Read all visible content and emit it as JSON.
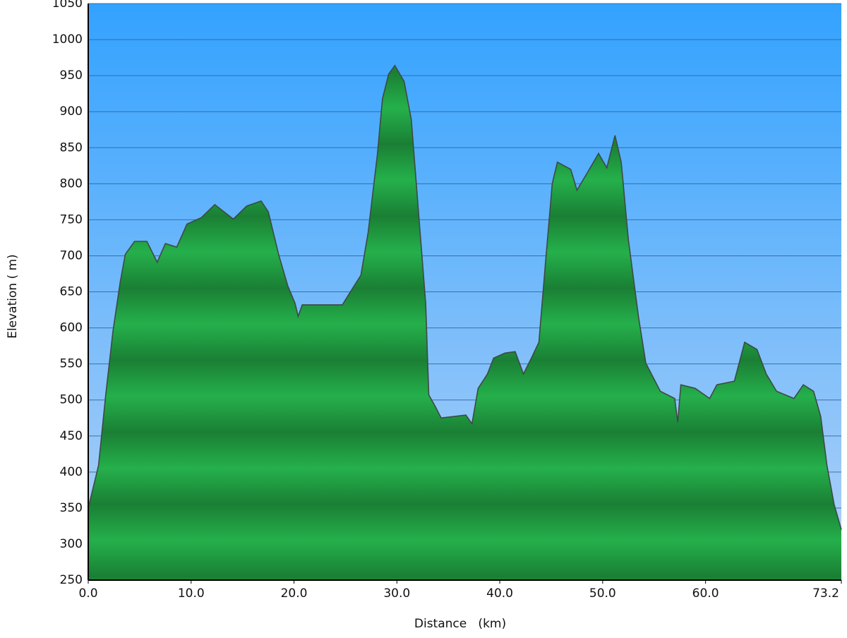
{
  "chart_data": {
    "type": "area",
    "xlabel": "Distance   (km)",
    "ylabel": "Elevation ( m)",
    "x": [
      0,
      1.0,
      1.7,
      2.4,
      3.1,
      3.6,
      4.5,
      5.7,
      6.7,
      7.5,
      8.6,
      9.6,
      11.0,
      12.3,
      14.1,
      15.4,
      16.8,
      17.5,
      18.5,
      19.4,
      20.1,
      20.4,
      20.8,
      24.7,
      25.7,
      26.5,
      27.2,
      28.1,
      28.6,
      29.2,
      29.8,
      30.7,
      31.4,
      32.1,
      32.8,
      33.1,
      33.8,
      34.3,
      36.7,
      37.3,
      37.9,
      38.8,
      39.4,
      40.5,
      41.5,
      42.3,
      43.0,
      43.8,
      44.4,
      45.1,
      45.6,
      46.9,
      47.5,
      48.5,
      49.6,
      50.4,
      51.2,
      51.8,
      52.5,
      53.5,
      54.2,
      55.6,
      57.0,
      57.3,
      57.6,
      59.0,
      60.4,
      61.1,
      62.8,
      63.8,
      65.0,
      65.9,
      66.9,
      68.6,
      69.5,
      70.5,
      71.2,
      71.8,
      72.5,
      73.2
    ],
    "series": [
      {
        "color": "#22a847",
        "values": [
          350,
          409,
          507,
          595,
          663,
          702,
          720,
          720,
          691,
          717,
          712,
          744,
          753,
          771,
          751,
          769,
          776,
          761,
          702,
          658,
          634,
          616,
          632,
          632,
          655,
          673,
          732,
          840,
          918,
          952,
          964,
          942,
          889,
          761,
          634,
          507,
          489,
          475,
          479,
          467,
          516,
          536,
          558,
          565,
          567,
          536,
          556,
          580,
          683,
          800,
          830,
          820,
          791,
          815,
          842,
          822,
          867,
          830,
          722,
          614,
          551,
          512,
          502,
          469,
          521,
          516,
          502,
          521,
          526,
          580,
          570,
          536,
          512,
          502,
          521,
          512,
          477,
          409,
          355,
          320
        ]
      }
    ],
    "xlim": [
      0,
      73.2
    ],
    "xticks": [
      {
        "value": 0,
        "label": "0.0"
      },
      {
        "value": 10,
        "label": "10.0"
      },
      {
        "value": 20,
        "label": "20.0"
      },
      {
        "value": 30,
        "label": "30.0"
      },
      {
        "value": 40,
        "label": "40.0"
      },
      {
        "value": 50,
        "label": "50.0"
      },
      {
        "value": 60,
        "label": "60.0"
      },
      73.2
    ],
    "ylim": [
      250,
      1050
    ],
    "yticks": [
      250,
      300,
      350,
      400,
      450,
      500,
      550,
      600,
      650,
      700,
      750,
      800,
      850,
      900,
      950,
      1000,
      1050
    ],
    "grid": true
  }
}
